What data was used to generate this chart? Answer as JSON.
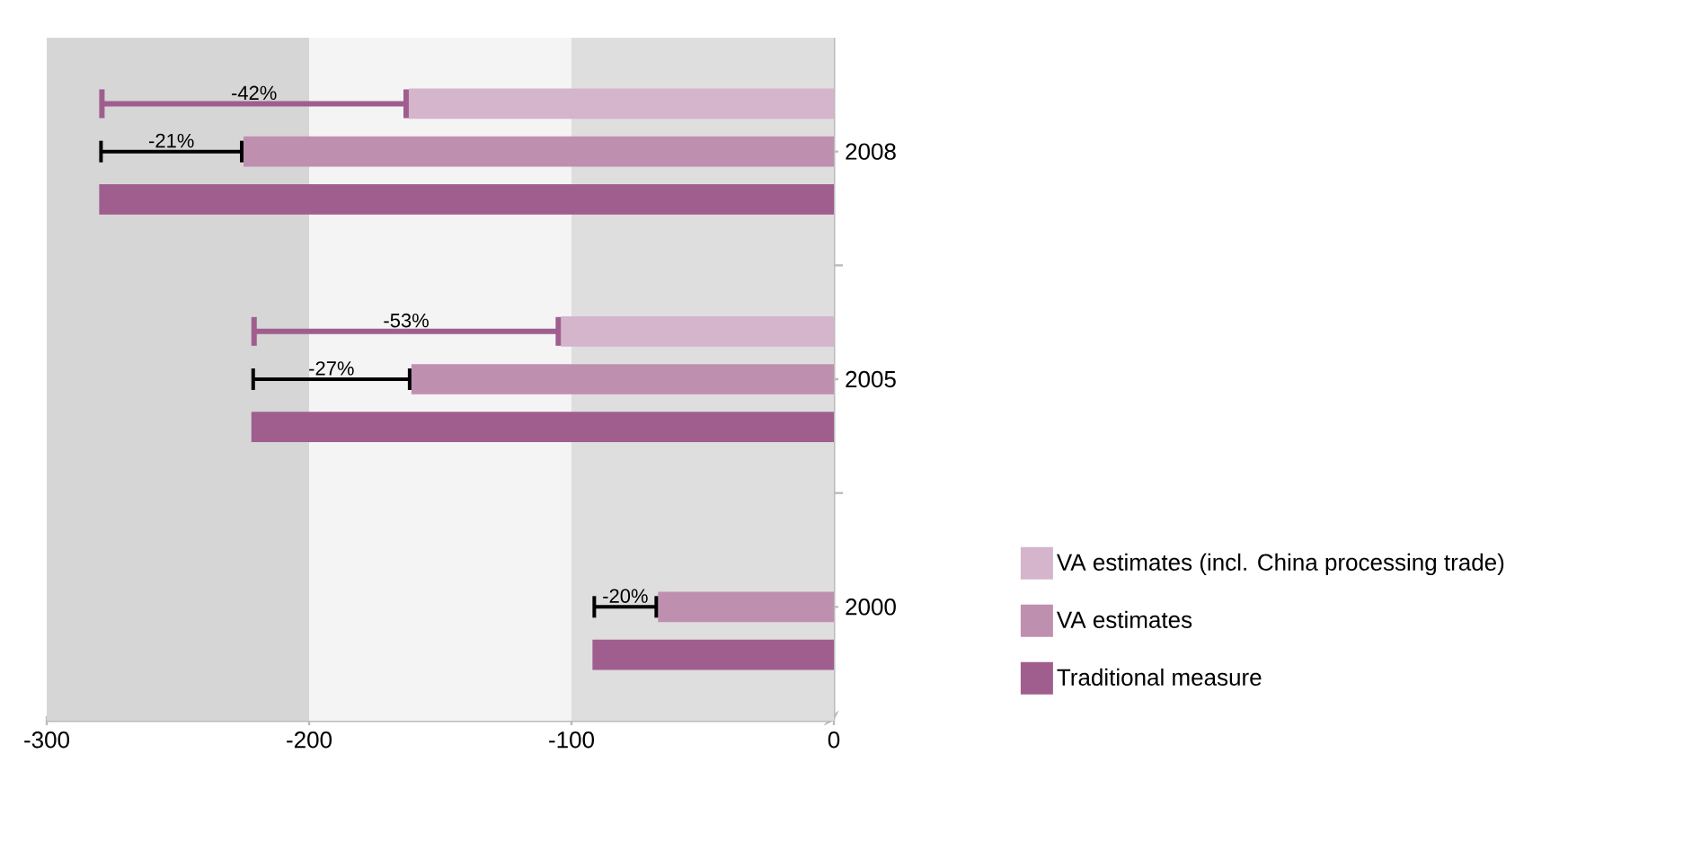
{
  "chart_data": {
    "type": "bar",
    "orientation": "horizontal",
    "categories": [
      "2008",
      "2005",
      "2000"
    ],
    "series": [
      {
        "name": "VA estimates (incl. China processing trade)",
        "color": "#d4b5cc",
        "values": [
          -162,
          -104,
          null
        ]
      },
      {
        "name": "VA estimates",
        "color": "#bf8fb0",
        "values": [
          -225,
          -161,
          -67
        ]
      },
      {
        "name": "Traditional measure",
        "color": "#a05e8e",
        "values": [
          -280,
          -222,
          -92
        ]
      }
    ],
    "xlim": [
      -300,
      0
    ],
    "xticks": [
      -300,
      -200,
      -100,
      0
    ],
    "bands": [
      {
        "axis": "x",
        "from": -300,
        "to": -200,
        "color": "#d6d6d6"
      },
      {
        "axis": "x",
        "from": -200,
        "to": -100,
        "color": "#f4f4f4"
      },
      {
        "axis": "x",
        "from": -100,
        "to": 0,
        "color": "#dedede"
      }
    ],
    "annotations": [
      "-42%",
      "-21%",
      "-53%",
      "-27%",
      "-20%"
    ],
    "legend": "right"
  }
}
